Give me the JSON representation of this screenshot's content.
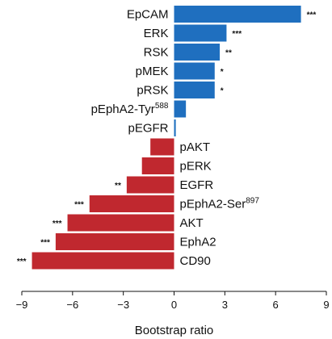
{
  "chart_data": {
    "type": "bar",
    "orientation": "horizontal",
    "xlabel": "Bootstrap ratio",
    "xlim": [
      -9,
      9
    ],
    "xticks": [
      "−9",
      "−6",
      "−3",
      "0",
      "3",
      "6",
      "9"
    ],
    "xtick_values": [
      -9,
      -6,
      -3,
      0,
      3,
      6,
      9
    ],
    "colors": {
      "positive": "#1f6fbf",
      "negative": "#c0282f"
    },
    "bars": [
      {
        "label": "EpCAM",
        "sup": "",
        "value": 7.5,
        "sig": "***"
      },
      {
        "label": "ERK",
        "sup": "",
        "value": 3.1,
        "sig": "***"
      },
      {
        "label": "RSK",
        "sup": "",
        "value": 2.7,
        "sig": "**"
      },
      {
        "label": "pMEK",
        "sup": "",
        "value": 2.4,
        "sig": "*"
      },
      {
        "label": "pRSK",
        "sup": "",
        "value": 2.4,
        "sig": "*"
      },
      {
        "label": "pEphA2-Tyr",
        "sup": "588",
        "value": 0.7,
        "sig": ""
      },
      {
        "label": "pEGFR",
        "sup": "",
        "value": 0.1,
        "sig": ""
      },
      {
        "label": "pAKT",
        "sup": "",
        "value": -1.4,
        "sig": ""
      },
      {
        "label": "pERK",
        "sup": "",
        "value": -1.9,
        "sig": ""
      },
      {
        "label": "EGFR",
        "sup": "",
        "value": -2.8,
        "sig": "**"
      },
      {
        "label": "pEphA2-Ser",
        "sup": "897",
        "value": -5.0,
        "sig": "***"
      },
      {
        "label": "AKT",
        "sup": "",
        "value": -6.3,
        "sig": "***"
      },
      {
        "label": "EphA2",
        "sup": "",
        "value": -7.0,
        "sig": "***"
      },
      {
        "label": "CD90",
        "sup": "",
        "value": -8.4,
        "sig": "***"
      }
    ]
  }
}
